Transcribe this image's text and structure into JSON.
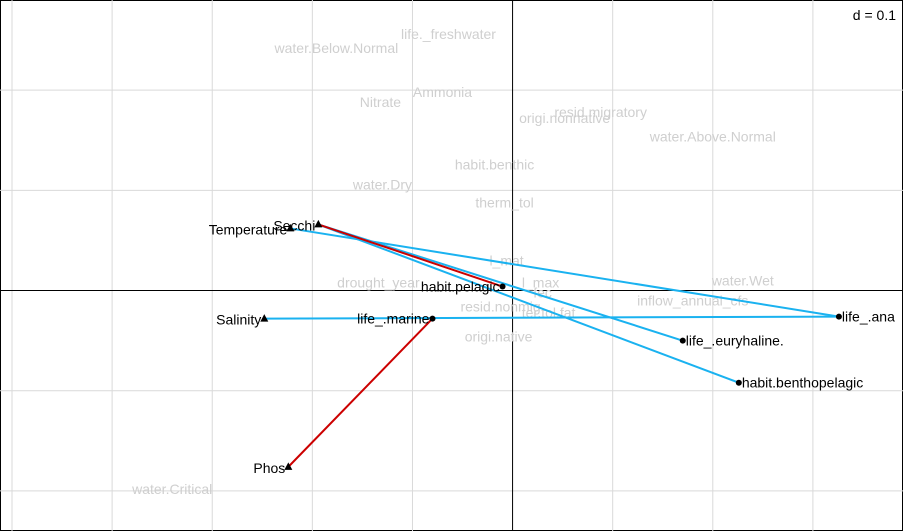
{
  "chart_data": {
    "type": "scatter",
    "title": "",
    "scale_label": "d = 0.1",
    "grid": true,
    "xlim": [
      -2.56,
      1.95
    ],
    "ylim": [
      -1.2,
      1.45
    ],
    "grid_step": 0.5,
    "axis_lines": true,
    "colors": {
      "link_blue": "#1ab2f0",
      "link_red": "#cc0000",
      "grid": "#d9d9d9",
      "faint_label": "#cfcfcf"
    },
    "supplementary_labels": [
      {
        "text": "life._freshwater",
        "x": -0.32,
        "y": 1.28
      },
      {
        "text": "water.Below.Normal",
        "x": -0.88,
        "y": 1.21
      },
      {
        "text": "Ammonia",
        "x": -0.35,
        "y": 0.99
      },
      {
        "text": "Nitrate",
        "x": -0.66,
        "y": 0.94
      },
      {
        "text": "resid.migratory",
        "x": 0.44,
        "y": 0.89
      },
      {
        "text": "origi.nonnative",
        "x": 0.26,
        "y": 0.86
      },
      {
        "text": "water.Above.Normal",
        "x": 1.0,
        "y": 0.77
      },
      {
        "text": "habit.benthic",
        "x": -0.09,
        "y": 0.63
      },
      {
        "text": "water.Dry",
        "x": -0.65,
        "y": 0.53
      },
      {
        "text": "therm_tol",
        "x": -0.04,
        "y": 0.44
      },
      {
        "text": "l_mat",
        "x": -0.03,
        "y": 0.15
      },
      {
        "text": "drought_year",
        "x": -0.67,
        "y": 0.04
      },
      {
        "text": "l_max",
        "x": 0.14,
        "y": 0.04
      },
      {
        "text": "water.Wet",
        "x": 1.15,
        "y": 0.05
      },
      {
        "text": "inflow_annual_cfs",
        "x": 0.9,
        "y": -0.05
      },
      {
        "text": "resid.nonmig",
        "x": -0.06,
        "y": -0.08
      },
      {
        "text": "fec",
        "x": 0.15,
        "y": -0.01
      },
      {
        "text": "ter.tol.fat",
        "x": 0.18,
        "y": -0.11
      },
      {
        "text": "origi.native",
        "x": -0.07,
        "y": -0.23
      },
      {
        "text": "water.Critical",
        "x": -1.7,
        "y": -0.99
      }
    ],
    "environment_points": [
      {
        "label": "Temperature",
        "x": -1.11,
        "y": 0.31
      },
      {
        "label": "Secchi",
        "x": -0.97,
        "y": 0.33
      },
      {
        "label": "Salinity",
        "x": -1.24,
        "y": -0.14
      },
      {
        "label": "Phos",
        "x": -1.12,
        "y": -0.88
      }
    ],
    "species_points": [
      {
        "label": "habit.pelagic",
        "x": -0.05,
        "y": 0.02
      },
      {
        "label": "life_.marine",
        "x": -0.4,
        "y": -0.14
      },
      {
        "label": "life_.ana",
        "x": 1.63,
        "y": -0.13
      },
      {
        "label": "life_.euryhaline.",
        "x": 0.85,
        "y": -0.25
      },
      {
        "label": "habit.benthopelagic",
        "x": 1.13,
        "y": -0.46
      }
    ],
    "links": [
      {
        "from": "Temperature",
        "to": "life_.ana",
        "color": "link_blue"
      },
      {
        "from": "Secchi",
        "to": "life_.euryhaline.",
        "color": "link_blue"
      },
      {
        "from": "Secchi",
        "to": "habit.benthopelagic",
        "color": "link_blue"
      },
      {
        "from": "Salinity",
        "to": "life_.ana",
        "color": "link_blue"
      },
      {
        "from": "Secchi",
        "to": "habit.pelagic",
        "color": "link_red"
      },
      {
        "from": "Phos",
        "to": "life_.marine",
        "color": "link_red"
      }
    ]
  }
}
